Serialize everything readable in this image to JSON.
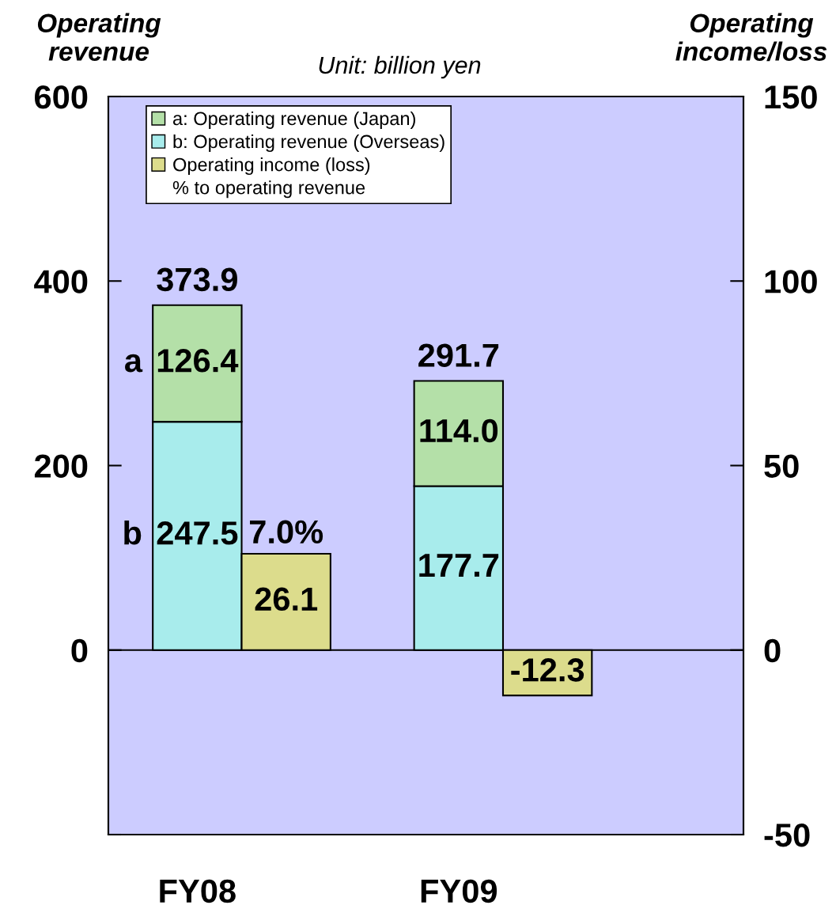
{
  "chart_data": {
    "type": "bar",
    "stacked": true,
    "categories": [
      "FY08",
      "FY09"
    ],
    "series": [
      {
        "name": "b: Operating revenue (Overseas)",
        "color": "#a8ecec",
        "values": [
          247.5,
          177.7
        ],
        "value_labels": [
          "247.5",
          "177.7"
        ]
      },
      {
        "name": "a: Operating revenue (Japan)",
        "color": "#b4e0a8",
        "values": [
          126.4,
          114.0
        ],
        "value_labels": [
          "126.4",
          "114.0"
        ]
      },
      {
        "name": "Operating income (loss)",
        "color": "#dcdc8c",
        "values": [
          26.1,
          -12.3
        ],
        "value_labels": [
          "26.1",
          "-12.3"
        ],
        "axis": "y2"
      }
    ],
    "totals": [
      "373.9",
      "291.7"
    ],
    "ylabel": "Operating\nrevenue",
    "y2label": "Operating\nincome/loss",
    "ylim": [
      -200,
      600
    ],
    "yticks": [
      {
        "value": -200,
        "label": null
      },
      0,
      200,
      400,
      600
    ],
    "y2lim": [
      -50,
      150
    ],
    "y2ticks": [
      -50,
      0,
      50,
      100,
      150
    ],
    "annotations": [
      "Unit: billion yen",
      "% to operating revenue",
      "7.0%",
      "a",
      "b"
    ],
    "ref_lines": [
      {
        "axis": "y",
        "value": 0,
        "color": "#000000"
      }
    ],
    "legend": "top left",
    "grid": false
  }
}
